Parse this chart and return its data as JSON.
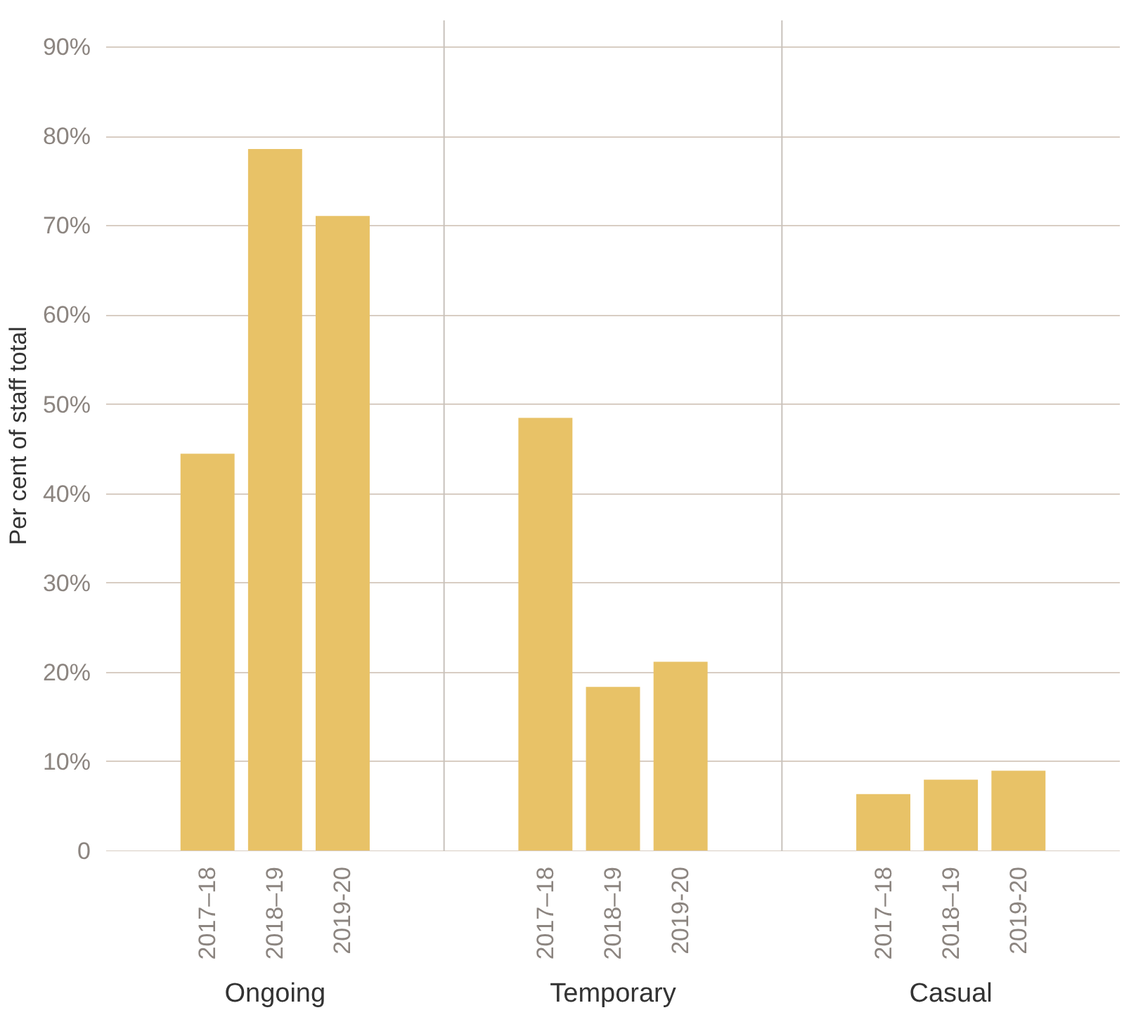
{
  "chart_data": {
    "type": "bar",
    "ylabel": "Per cent of staff total",
    "categories": [
      "Ongoing",
      "Temporary",
      "Casual"
    ],
    "series": [
      {
        "name": "2017–18",
        "color": "#e8c267",
        "values": [
          44.5,
          48.5,
          6.4
        ]
      },
      {
        "name": "2018–19",
        "color": "#e8c267",
        "values": [
          78.6,
          18.4,
          8.0
        ]
      },
      {
        "name": "2019-20",
        "color": "#e8c267",
        "values": [
          71.1,
          21.2,
          9.0
        ]
      }
    ],
    "ylim": [
      0,
      93
    ],
    "yticks": [
      0,
      {
        "value": 10,
        "label": "10%"
      },
      {
        "value": 20,
        "label": "20%"
      },
      {
        "value": 30,
        "label": "30%"
      },
      {
        "value": 40,
        "label": "40%"
      },
      {
        "value": 50,
        "label": "50%"
      },
      {
        "value": 60,
        "label": "60%"
      },
      {
        "value": 70,
        "label": "70%"
      },
      {
        "value": 80,
        "label": "80%"
      },
      {
        "value": 90,
        "label": "90%"
      }
    ],
    "grid": "y",
    "legend": false
  }
}
